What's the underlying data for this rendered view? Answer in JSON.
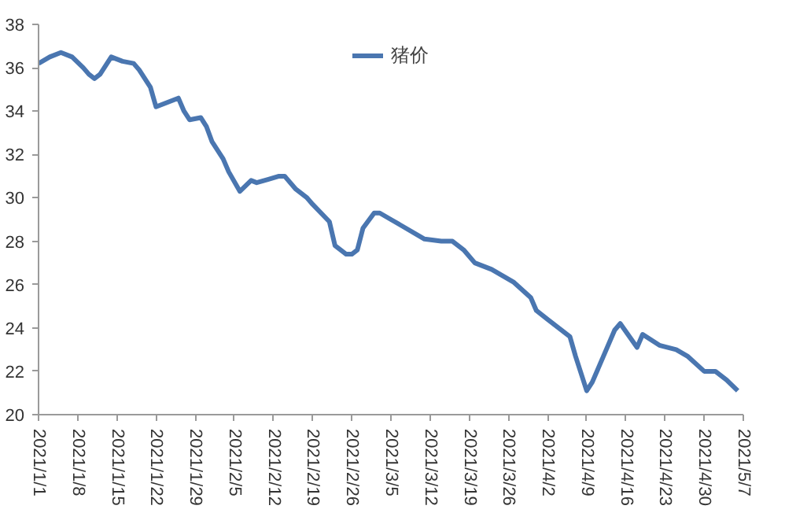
{
  "chart_data": {
    "type": "line",
    "legend": "top",
    "x": [
      "2021-01-01",
      "2021-01-03",
      "2021-01-05",
      "2021-01-07",
      "2021-01-09",
      "2021-01-10",
      "2021-01-11",
      "2021-01-12",
      "2021-01-14",
      "2021-01-16",
      "2021-01-18",
      "2021-01-19",
      "2021-01-21",
      "2021-01-22",
      "2021-01-24",
      "2021-01-26",
      "2021-01-27",
      "2021-01-28",
      "2021-01-30",
      "2021-01-31",
      "2021-02-01",
      "2021-02-03",
      "2021-02-04",
      "2021-02-06",
      "2021-02-08",
      "2021-02-09",
      "2021-02-11",
      "2021-02-13",
      "2021-02-14",
      "2021-02-16",
      "2021-02-18",
      "2021-02-19",
      "2021-02-22",
      "2021-02-23",
      "2021-02-25",
      "2021-02-26",
      "2021-02-27",
      "2021-02-28",
      "2021-03-02",
      "2021-03-03",
      "2021-03-05",
      "2021-03-07",
      "2021-03-11",
      "2021-03-14",
      "2021-03-16",
      "2021-03-18",
      "2021-03-20",
      "2021-03-23",
      "2021-03-27",
      "2021-03-30",
      "2021-03-31",
      "2021-04-02",
      "2021-04-06",
      "2021-04-07",
      "2021-04-09",
      "2021-04-10",
      "2021-04-14",
      "2021-04-15",
      "2021-04-18",
      "2021-04-19",
      "2021-04-22",
      "2021-04-25",
      "2021-04-27",
      "2021-04-30",
      "2021-05-02",
      "2021-05-04",
      "2021-05-06"
    ],
    "series": [
      {
        "name": "猪价",
        "color": "#4a76b0",
        "values": [
          36.2,
          36.5,
          36.7,
          36.5,
          36.0,
          35.7,
          35.5,
          35.7,
          36.5,
          36.3,
          36.2,
          35.9,
          35.1,
          34.2,
          34.4,
          34.6,
          34.0,
          33.6,
          33.7,
          33.3,
          32.6,
          31.8,
          31.2,
          30.3,
          30.8,
          30.7,
          30.85,
          31.0,
          31.0,
          30.4,
          30.0,
          29.7,
          28.9,
          27.8,
          27.4,
          27.4,
          27.6,
          28.6,
          29.3,
          29.3,
          29.0,
          28.7,
          28.1,
          28.0,
          28.0,
          27.6,
          27.0,
          26.7,
          26.1,
          25.4,
          24.8,
          24.4,
          23.6,
          22.7,
          21.1,
          21.5,
          23.9,
          24.2,
          23.1,
          23.7,
          23.2,
          23.0,
          22.7,
          22.0,
          22.0,
          21.6,
          21.1
        ]
      }
    ],
    "xlim": [
      "2021-01-01",
      "2021-05-07"
    ],
    "xticks": [
      {
        "value": "2021-01-01",
        "label": "2021/1/1"
      },
      {
        "value": "2021-01-08",
        "label": "2021/1/8"
      },
      {
        "value": "2021-01-15",
        "label": "2021/1/15"
      },
      {
        "value": "2021-01-22",
        "label": "2021/1/22"
      },
      {
        "value": "2021-01-29",
        "label": "2021/1/29"
      },
      {
        "value": "2021-02-05",
        "label": "2021/2/5"
      },
      {
        "value": "2021-02-12",
        "label": "2021/2/12"
      },
      {
        "value": "2021-02-19",
        "label": "2021/2/19"
      },
      {
        "value": "2021-02-26",
        "label": "2021/2/26"
      },
      {
        "value": "2021-03-05",
        "label": "2021/3/5"
      },
      {
        "value": "2021-03-12",
        "label": "2021/3/12"
      },
      {
        "value": "2021-03-19",
        "label": "2021/3/19"
      },
      {
        "value": "2021-03-26",
        "label": "2021/3/26"
      },
      {
        "value": "2021-04-02",
        "label": "2021/4/2"
      },
      {
        "value": "2021-04-09",
        "label": "2021/4/9"
      },
      {
        "value": "2021-04-16",
        "label": "2021/4/16"
      },
      {
        "value": "2021-04-23",
        "label": "2021/4/23"
      },
      {
        "value": "2021-04-30",
        "label": "2021/4/30"
      },
      {
        "value": "2021-05-07",
        "label": "2021/5/7"
      }
    ],
    "ylim": [
      20,
      38
    ],
    "yticks": [
      20,
      22,
      24,
      26,
      28,
      30,
      32,
      34,
      36,
      38
    ],
    "grid": false
  }
}
